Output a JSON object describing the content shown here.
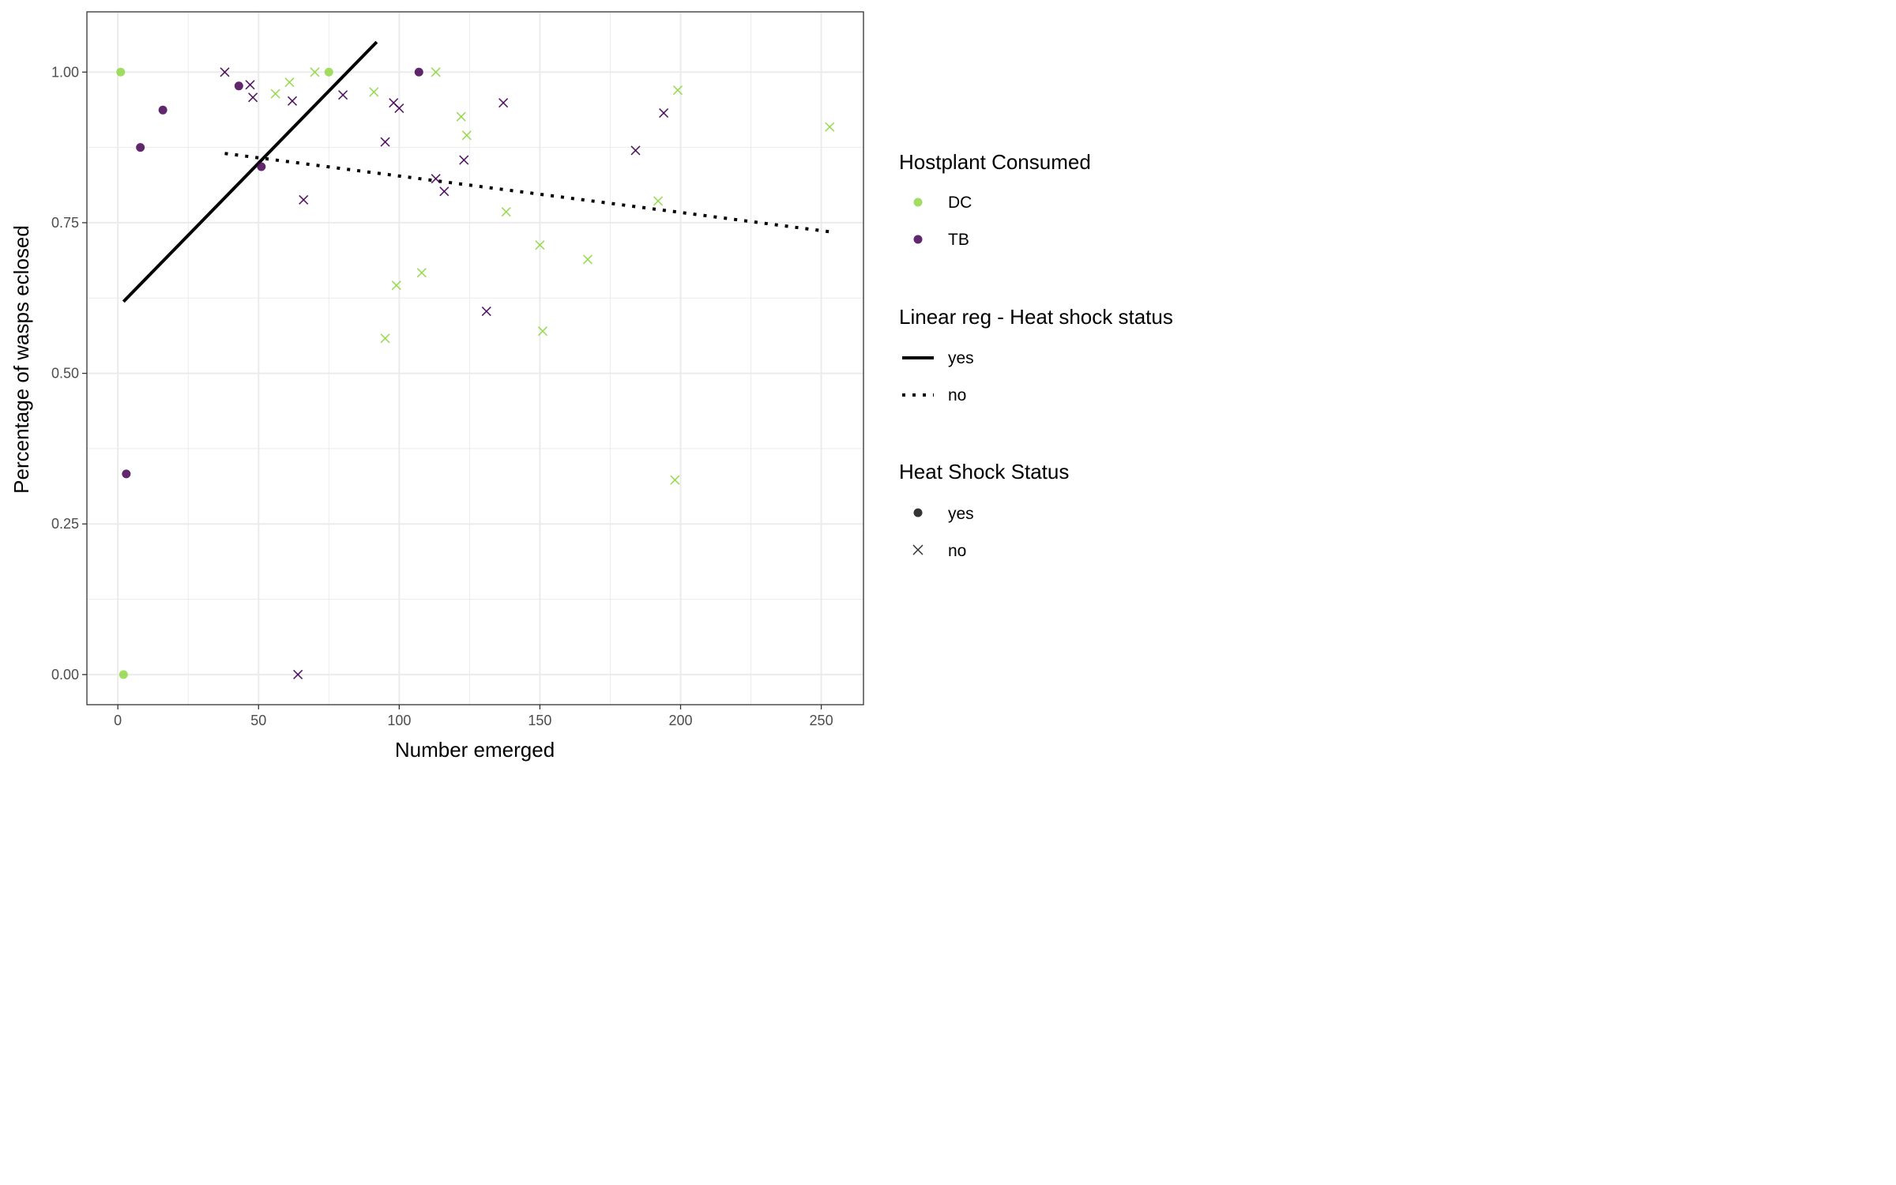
{
  "chart_data": {
    "type": "scatter",
    "xlabel": "Number emerged",
    "ylabel": "Percentage of wasps eclosed",
    "xlim": [
      -11,
      265
    ],
    "ylim": [
      -0.05,
      1.1
    ],
    "x_ticks": [
      0,
      50,
      100,
      150,
      200,
      250
    ],
    "x_tick_labels": [
      "0",
      "50",
      "100",
      "150",
      "200",
      "250"
    ],
    "y_ticks": [
      0,
      0.25,
      0.5,
      0.75,
      1.0
    ],
    "y_tick_labels": [
      "0.00",
      "0.25",
      "0.50",
      "0.75",
      "1.00"
    ],
    "grid": true,
    "legend_position": "right",
    "colors": {
      "DC": "#8fd744",
      "TB": "#440154",
      "line": "#000000",
      "grid": "#ebebeb",
      "panel_border": "#333333"
    },
    "legends": {
      "hostplant": {
        "title": "Hostplant Consumed",
        "items": [
          "DC",
          "TB"
        ]
      },
      "linreg": {
        "title": "Linear reg - Heat shock status",
        "items": [
          "yes",
          "no"
        ]
      },
      "heatshock": {
        "title": "Heat Shock Status",
        "items": [
          "yes",
          "no"
        ]
      }
    },
    "points": [
      {
        "x": 1,
        "y": 1.0,
        "host": "DC",
        "heat": "yes"
      },
      {
        "x": 2,
        "y": 0.0,
        "host": "DC",
        "heat": "yes"
      },
      {
        "x": 75,
        "y": 1.0,
        "host": "DC",
        "heat": "yes"
      },
      {
        "x": 3,
        "y": 0.333,
        "host": "TB",
        "heat": "yes"
      },
      {
        "x": 8,
        "y": 0.875,
        "host": "TB",
        "heat": "yes"
      },
      {
        "x": 16,
        "y": 0.937,
        "host": "TB",
        "heat": "yes"
      },
      {
        "x": 43,
        "y": 0.977,
        "host": "TB",
        "heat": "yes"
      },
      {
        "x": 51,
        "y": 0.843,
        "host": "TB",
        "heat": "yes"
      },
      {
        "x": 107,
        "y": 1.0,
        "host": "TB",
        "heat": "yes"
      },
      {
        "x": 56,
        "y": 0.964,
        "host": "DC",
        "heat": "no"
      },
      {
        "x": 61,
        "y": 0.983,
        "host": "DC",
        "heat": "no"
      },
      {
        "x": 70,
        "y": 1.0,
        "host": "DC",
        "heat": "no"
      },
      {
        "x": 91,
        "y": 0.967,
        "host": "DC",
        "heat": "no"
      },
      {
        "x": 95,
        "y": 0.558,
        "host": "DC",
        "heat": "no"
      },
      {
        "x": 99,
        "y": 0.646,
        "host": "DC",
        "heat": "no"
      },
      {
        "x": 108,
        "y": 0.667,
        "host": "DC",
        "heat": "no"
      },
      {
        "x": 113,
        "y": 1.0,
        "host": "DC",
        "heat": "no"
      },
      {
        "x": 122,
        "y": 0.926,
        "host": "DC",
        "heat": "no"
      },
      {
        "x": 124,
        "y": 0.895,
        "host": "DC",
        "heat": "no"
      },
      {
        "x": 138,
        "y": 0.768,
        "host": "DC",
        "heat": "no"
      },
      {
        "x": 150,
        "y": 0.713,
        "host": "DC",
        "heat": "no"
      },
      {
        "x": 151,
        "y": 0.57,
        "host": "DC",
        "heat": "no"
      },
      {
        "x": 167,
        "y": 0.689,
        "host": "DC",
        "heat": "no"
      },
      {
        "x": 192,
        "y": 0.786,
        "host": "DC",
        "heat": "no"
      },
      {
        "x": 198,
        "y": 0.323,
        "host": "DC",
        "heat": "no"
      },
      {
        "x": 199,
        "y": 0.97,
        "host": "DC",
        "heat": "no"
      },
      {
        "x": 253,
        "y": 0.909,
        "host": "DC",
        "heat": "no"
      },
      {
        "x": 38,
        "y": 1.0,
        "host": "TB",
        "heat": "no"
      },
      {
        "x": 47,
        "y": 0.979,
        "host": "TB",
        "heat": "no"
      },
      {
        "x": 48,
        "y": 0.958,
        "host": "TB",
        "heat": "no"
      },
      {
        "x": 62,
        "y": 0.952,
        "host": "TB",
        "heat": "no"
      },
      {
        "x": 64,
        "y": 0.0,
        "host": "TB",
        "heat": "no"
      },
      {
        "x": 66,
        "y": 0.788,
        "host": "TB",
        "heat": "no"
      },
      {
        "x": 80,
        "y": 0.962,
        "host": "TB",
        "heat": "no"
      },
      {
        "x": 95,
        "y": 0.884,
        "host": "TB",
        "heat": "no"
      },
      {
        "x": 98,
        "y": 0.949,
        "host": "TB",
        "heat": "no"
      },
      {
        "x": 100,
        "y": 0.94,
        "host": "TB",
        "heat": "no"
      },
      {
        "x": 113,
        "y": 0.823,
        "host": "TB",
        "heat": "no"
      },
      {
        "x": 116,
        "y": 0.802,
        "host": "TB",
        "heat": "no"
      },
      {
        "x": 123,
        "y": 0.854,
        "host": "TB",
        "heat": "no"
      },
      {
        "x": 131,
        "y": 0.603,
        "host": "TB",
        "heat": "no"
      },
      {
        "x": 137,
        "y": 0.949,
        "host": "TB",
        "heat": "no"
      },
      {
        "x": 184,
        "y": 0.87,
        "host": "TB",
        "heat": "no"
      },
      {
        "x": 194,
        "y": 0.932,
        "host": "TB",
        "heat": "no"
      }
    ],
    "regression_lines": [
      {
        "name": "yes",
        "style": "solid",
        "x": [
          2,
          92
        ],
        "y": [
          0.619,
          1.05
        ]
      },
      {
        "name": "no",
        "style": "dotted",
        "x": [
          38,
          253
        ],
        "y": [
          0.865,
          0.735
        ]
      }
    ]
  }
}
